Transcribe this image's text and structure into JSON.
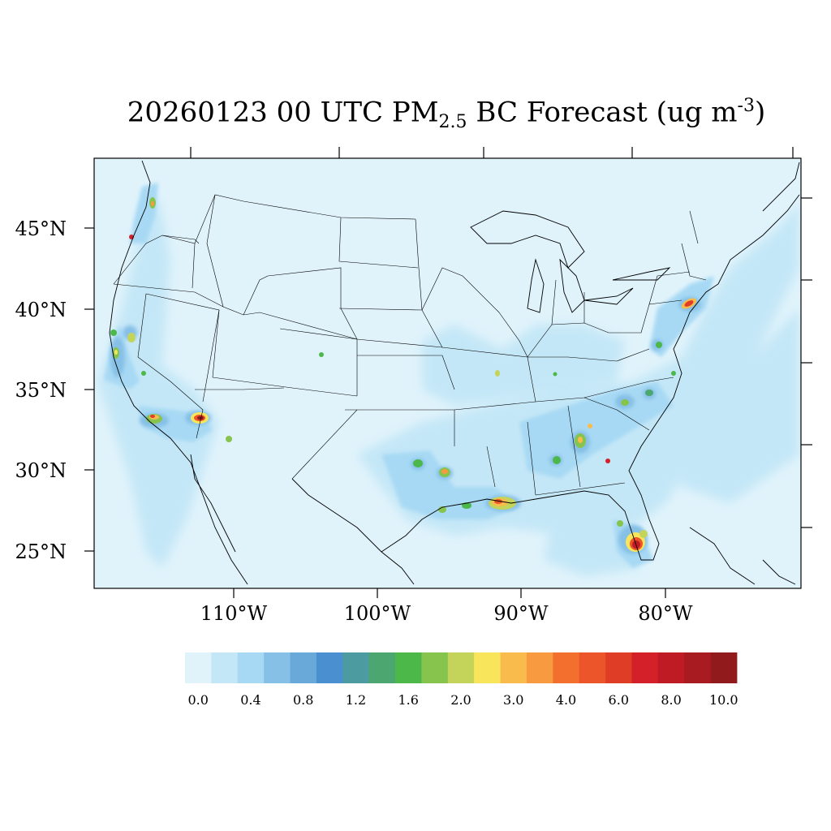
{
  "title": {
    "prefix": "20260123 00 UTC PM",
    "subscript": "2.5",
    "middle": " BC Forecast (ug m",
    "superscript": "-3",
    "suffix": ")"
  },
  "lat_labels": [
    "45°N",
    "40°N",
    "35°N",
    "30°N",
    "25°N"
  ],
  "lon_labels": [
    "110°W",
    "100°W",
    "90°W",
    "80°W"
  ],
  "colorbar": {
    "tick_labels": [
      "0.0",
      "0.4",
      "0.8",
      "1.2",
      "1.6",
      "2.0",
      "3.0",
      "4.0",
      "6.0",
      "8.0",
      "10.0"
    ],
    "colors": [
      "#e0f3fb",
      "#c4e7f7",
      "#a7d9f4",
      "#86c0e6",
      "#68a9da",
      "#4a8fd0",
      "#4b9ba0",
      "#4ba76f",
      "#4cb84a",
      "#86c44e",
      "#c4d45a",
      "#f9e55c",
      "#f9bc4c",
      "#f79a40",
      "#f36f2e",
      "#eb5529",
      "#df3d26",
      "#d32029",
      "#be1b25",
      "#a81b21",
      "#911a1c"
    ]
  }
}
